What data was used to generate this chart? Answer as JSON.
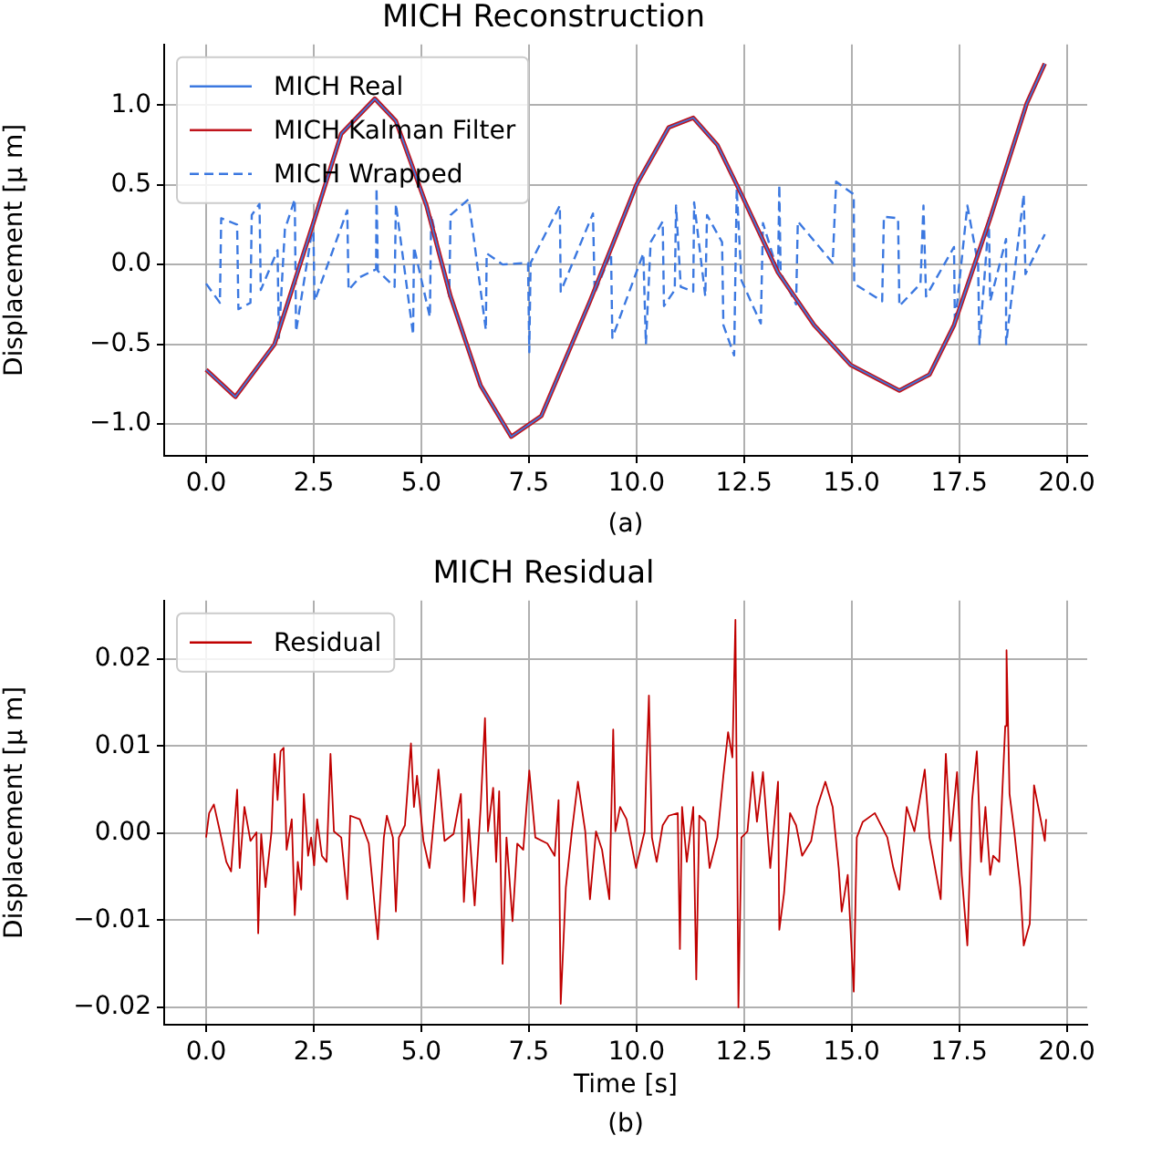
{
  "chart_data": [
    {
      "type": "line",
      "title": "MICH Reconstruction",
      "ylabel": "Displacement [μ m]",
      "annotations": [
        "(a)"
      ],
      "grid": true,
      "legend": "top left",
      "xlim": [
        -0.975,
        20.475
      ],
      "ylim": [
        -1.2,
        1.38
      ],
      "xticks": [
        {
          "value": 0,
          "label": "0.0"
        },
        {
          "value": 2.5,
          "label": "2.5"
        },
        {
          "value": 5,
          "label": "5.0"
        },
        {
          "value": 7.5,
          "label": "7.5"
        },
        {
          "value": 10,
          "label": "10.0"
        },
        {
          "value": 12.5,
          "label": "12.5"
        },
        {
          "value": 15,
          "label": "15.0"
        },
        {
          "value": 17.5,
          "label": "17.5"
        },
        {
          "value": 20,
          "label": "20.0"
        }
      ],
      "yticks": [
        {
          "value": -1,
          "label": "−1.0"
        },
        {
          "value": -0.5,
          "label": "−0.5"
        },
        {
          "value": 0,
          "label": "0.0"
        },
        {
          "value": 0.5,
          "label": "0.5"
        },
        {
          "value": 1,
          "label": "1.0"
        }
      ],
      "series": [
        {
          "name": "MICH Real",
          "color": "#3b78e0",
          "line_style": "solid",
          "x": [
            0,
            0.68,
            1.59,
            2.49,
            3.14,
            3.92,
            4.41,
            5.12,
            5.68,
            6.38,
            7.09,
            7.79,
            8.92,
            10.0,
            10.75,
            11.32,
            11.88,
            12.44,
            13.29,
            14.13,
            14.98,
            16.11,
            16.81,
            17.38,
            18.22,
            19.07,
            19.49
          ],
          "values": [
            -0.66,
            -0.83,
            -0.5,
            0.26,
            0.82,
            1.04,
            0.9,
            0.37,
            -0.2,
            -0.76,
            -1.08,
            -0.95,
            -0.23,
            0.5,
            0.86,
            0.92,
            0.75,
            0.44,
            -0.05,
            -0.38,
            -0.63,
            -0.79,
            -0.69,
            -0.38,
            0.29,
            1.01,
            1.26
          ]
        },
        {
          "name": "MICH Kalman Filter",
          "color": "#c0141c",
          "line_style": "solid",
          "x": [
            0,
            0.68,
            1.59,
            2.49,
            3.14,
            3.92,
            4.41,
            5.12,
            5.68,
            6.38,
            7.09,
            7.79,
            8.92,
            10.0,
            10.75,
            11.32,
            11.88,
            12.44,
            13.29,
            14.13,
            14.98,
            16.11,
            16.81,
            17.38,
            18.22,
            19.07,
            19.49
          ],
          "values": [
            -0.66,
            -0.83,
            -0.5,
            0.26,
            0.82,
            1.04,
            0.9,
            0.37,
            -0.2,
            -0.76,
            -1.08,
            -0.95,
            -0.23,
            0.5,
            0.86,
            0.92,
            0.75,
            0.44,
            -0.05,
            -0.38,
            -0.63,
            -0.79,
            -0.69,
            -0.38,
            0.29,
            1.01,
            1.26
          ]
        },
        {
          "name": "MICH Wrapped",
          "color": "#3b78e0",
          "line_style": "dashed",
          "x": [
            0,
            0.32,
            0.35,
            0.72,
            0.75,
            1.03,
            1.06,
            1.24,
            1.27,
            1.66,
            1.69,
            1.83,
            2.06,
            2.09,
            2.49,
            2.52,
            3.28,
            3.31,
            3.57,
            3.95,
            3.96,
            3.99,
            4.38,
            4.41,
            4.81,
            4.83,
            5.2,
            5.23,
            5.65,
            5.68,
            6.1,
            6.5,
            6.52,
            6.89,
            7.48,
            7.51,
            7.54,
            8.22,
            8.24,
            8.99,
            9.03,
            9.41,
            9.44,
            10.16,
            10.22,
            10.33,
            10.61,
            10.64,
            10.89,
            10.92,
            11.03,
            11.32,
            11.34,
            11.6,
            11.64,
            11.99,
            12.02,
            12.27,
            12.33,
            12.44,
            12.89,
            12.94,
            13.29,
            13.32,
            13.35,
            13.71,
            13.75,
            14.56,
            14.64,
            15.05,
            15.06,
            15.71,
            15.75,
            16.08,
            16.11,
            16.6,
            16.67,
            16.73,
            17.38,
            17.4,
            17.69,
            17.94,
            17.97,
            18.19,
            18.22,
            18.59,
            18.59,
            19.0,
            19.04,
            19.49
          ],
          "values": [
            -0.12,
            -0.24,
            0.29,
            0.25,
            -0.28,
            -0.24,
            0.31,
            0.38,
            -0.16,
            0.09,
            -0.46,
            0.22,
            0.41,
            -0.42,
            0.26,
            -0.23,
            0.34,
            -0.16,
            -0.08,
            -0.03,
            0.48,
            -0.04,
            -0.14,
            0.38,
            -0.44,
            0.11,
            -0.33,
            0.31,
            -0.2,
            0.31,
            0.41,
            -0.41,
            0.07,
            0.0,
            0.01,
            -0.55,
            0.01,
            0.37,
            -0.17,
            0.32,
            -0.18,
            0.07,
            -0.46,
            0.07,
            -0.5,
            0.14,
            0.27,
            -0.26,
            -0.16,
            0.37,
            -0.14,
            -0.17,
            0.39,
            -0.2,
            0.31,
            0.14,
            -0.38,
            -0.57,
            0.48,
            -0.1,
            -0.37,
            0.26,
            -0.05,
            0.5,
            -0.05,
            -0.25,
            0.27,
            0.01,
            0.52,
            0.44,
            -0.12,
            -0.23,
            0.3,
            0.29,
            -0.26,
            -0.12,
            0.37,
            -0.2,
            0.11,
            -0.38,
            0.37,
            0.0,
            -0.5,
            0.29,
            -0.23,
            0.16,
            -0.5,
            0.44,
            -0.06,
            0.19
          ]
        }
      ]
    },
    {
      "type": "line",
      "title": "MICH Residual",
      "xlabel": "Time [s]",
      "ylabel": "Displacement [μ m]",
      "annotations": [
        "(b)"
      ],
      "grid": true,
      "legend": "top left",
      "xlim": [
        -0.975,
        20.475
      ],
      "ylim": [
        -0.022,
        0.0267
      ],
      "xticks": [
        {
          "value": 0,
          "label": "0.0"
        },
        {
          "value": 2.5,
          "label": "2.5"
        },
        {
          "value": 5,
          "label": "5.0"
        },
        {
          "value": 7.5,
          "label": "7.5"
        },
        {
          "value": 10,
          "label": "10.0"
        },
        {
          "value": 12.5,
          "label": "12.5"
        },
        {
          "value": 15,
          "label": "15.0"
        },
        {
          "value": 17.5,
          "label": "17.5"
        },
        {
          "value": 20,
          "label": "20.0"
        }
      ],
      "yticks": [
        {
          "value": -0.02,
          "label": "−0.02"
        },
        {
          "value": -0.01,
          "label": "−0.01"
        },
        {
          "value": 0,
          "label": "0.00"
        },
        {
          "value": 0.01,
          "label": "0.01"
        },
        {
          "value": 0.02,
          "label": "0.02"
        }
      ],
      "series": [
        {
          "name": "Residual",
          "color": "#c00000",
          "line_style": "solid",
          "x": [
            0,
            0.07,
            0.18,
            0.32,
            0.47,
            0.58,
            0.72,
            0.78,
            0.89,
            1.03,
            1.17,
            1.21,
            1.28,
            1.38,
            1.52,
            1.59,
            1.66,
            1.73,
            1.8,
            1.87,
            1.99,
            2.06,
            2.13,
            2.21,
            2.27,
            2.37,
            2.44,
            2.51,
            2.58,
            2.69,
            2.8,
            2.89,
            2.97,
            3.14,
            3.28,
            3.35,
            3.57,
            3.78,
            3.99,
            4.13,
            4.2,
            4.34,
            4.41,
            4.48,
            4.62,
            4.76,
            4.83,
            4.9,
            5.05,
            5.19,
            5.4,
            5.54,
            5.75,
            5.92,
            5.99,
            6.1,
            6.24,
            6.38,
            6.48,
            6.55,
            6.67,
            6.74,
            6.81,
            6.89,
            6.98,
            7.12,
            7.23,
            7.37,
            7.51,
            7.65,
            7.93,
            8.1,
            8.19,
            8.24,
            8.36,
            8.5,
            8.64,
            8.81,
            8.92,
            9.06,
            9.2,
            9.37,
            9.46,
            9.51,
            9.62,
            9.77,
            9.99,
            10.19,
            10.23,
            10.29,
            10.36,
            10.47,
            10.61,
            10.75,
            10.96,
            11.01,
            11.06,
            11.17,
            11.32,
            11.39,
            11.46,
            11.6,
            11.7,
            11.88,
            12.02,
            12.13,
            12.23,
            12.3,
            12.37,
            12.44,
            12.58,
            12.7,
            12.8,
            12.94,
            13.11,
            13.29,
            13.32,
            13.43,
            13.57,
            13.71,
            13.85,
            14.06,
            14.2,
            14.39,
            14.56,
            14.7,
            14.77,
            14.91,
            15.05,
            15.12,
            15.26,
            15.54,
            15.83,
            15.97,
            16.11,
            16.28,
            16.46,
            16.7,
            16.81,
            17.07,
            17.19,
            17.3,
            17.45,
            17.56,
            17.69,
            17.8,
            17.91,
            18.01,
            18.11,
            18.22,
            18.29,
            18.43,
            18.57,
            18.6,
            18.67,
            18.78,
            18.92,
            19.0,
            19.14,
            19.24,
            19.42,
            19.49,
            19.52
          ],
          "values": [
            -0.0005,
            0.0023,
            0.0033,
            0.0002,
            -0.0033,
            -0.0044,
            0.005,
            -0.004,
            0.003,
            -0.0009,
            0.0001,
            -0.0115,
            -0.0001,
            -0.0062,
            0.0002,
            0.0091,
            0.0038,
            0.0094,
            0.0098,
            -0.0019,
            0.0016,
            -0.0094,
            -0.0033,
            -0.0065,
            0.0045,
            -0.0026,
            -0.0005,
            -0.0037,
            0.0016,
            -0.0026,
            -0.0033,
            0.0091,
            0.0002,
            -0.0005,
            -0.0076,
            0.002,
            0.0016,
            -0.0012,
            -0.0122,
            -0.0005,
            0.002,
            -0.0005,
            -0.009,
            -0.0005,
            0.0009,
            0.0103,
            0.003,
            0.0066,
            -0.0009,
            -0.004,
            0.0073,
            -0.0009,
            -0.0001,
            0.0045,
            -0.0079,
            0.0016,
            -0.0083,
            0.003,
            0.0132,
            0.0002,
            0.0052,
            -0.0033,
            0.0048,
            -0.015,
            -0.0005,
            -0.0101,
            -0.0012,
            -0.0019,
            0.0072,
            -0.0005,
            -0.0012,
            -0.0026,
            0.0038,
            -0.0196,
            -0.0062,
            0.0002,
            0.0059,
            0.0002,
            -0.0076,
            0.0002,
            -0.0019,
            -0.0076,
            0.0119,
            0.0002,
            0.003,
            0.0016,
            -0.004,
            0.0002,
            0.0073,
            0.0158,
            -0.0005,
            -0.0033,
            0.0009,
            0.002,
            0.0023,
            -0.0133,
            0.003,
            -0.0033,
            0.003,
            -0.0168,
            0.002,
            0.0013,
            -0.004,
            -0.0005,
            0.0066,
            0.0116,
            0.0087,
            0.0245,
            -0.02,
            -0.0005,
            0.0002,
            0.007,
            0.0013,
            0.007,
            -0.004,
            0.0059,
            -0.0111,
            -0.0069,
            0.0023,
            0.0009,
            -0.0026,
            -0.0009,
            0.003,
            0.0059,
            0.003,
            -0.004,
            -0.009,
            -0.0048,
            -0.0182,
            -0.0005,
            0.0013,
            0.0023,
            -0.0005,
            -0.004,
            -0.0065,
            0.003,
            0.0002,
            0.0073,
            -0.0005,
            -0.0076,
            0.0091,
            -0.0009,
            0.007,
            -0.0048,
            -0.0129,
            0.0038,
            0.0094,
            -0.0033,
            0.003,
            -0.0048,
            -0.0026,
            -0.0033,
            0.0123,
            0.021,
            0.0045,
            0.0002,
            -0.0062,
            -0.0129,
            -0.0104,
            0.0055,
            0.0009,
            -0.0009,
            0.0016
          ]
        }
      ]
    }
  ]
}
